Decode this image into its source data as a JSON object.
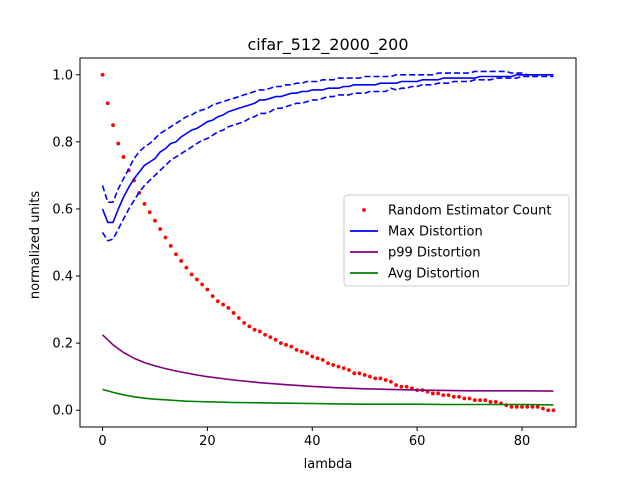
{
  "chart_data": {
    "type": "line",
    "title": "cifar_512_2000_200",
    "xlabel": "lambda",
    "ylabel": "normalized units",
    "xlim": [
      -4.3,
      90.3
    ],
    "ylim": [
      -0.05,
      1.05
    ],
    "xticks": [
      0,
      20,
      40,
      60,
      80
    ],
    "yticks": [
      0.0,
      0.2,
      0.4,
      0.6,
      0.8,
      1.0
    ],
    "xtick_labels": [
      "0",
      "20",
      "40",
      "60",
      "80"
    ],
    "ytick_labels": [
      "0.0",
      "0.2",
      "0.4",
      "0.6",
      "0.8",
      "1.0"
    ],
    "grid": false,
    "legend_position": "center-right",
    "series": [
      {
        "name": "Random Estimator Count",
        "style": "dots",
        "color": "#ff0000",
        "x": [
          0,
          1,
          2,
          3,
          4,
          5,
          6,
          7,
          8,
          9,
          10,
          11,
          12,
          13,
          14,
          15,
          16,
          17,
          18,
          19,
          20,
          21,
          22,
          23,
          24,
          25,
          26,
          27,
          28,
          29,
          30,
          31,
          32,
          33,
          34,
          35,
          36,
          37,
          38,
          39,
          40,
          41,
          42,
          43,
          44,
          45,
          46,
          47,
          48,
          49,
          50,
          51,
          52,
          53,
          54,
          55,
          56,
          57,
          58,
          59,
          60,
          61,
          62,
          63,
          64,
          65,
          66,
          67,
          68,
          69,
          70,
          71,
          72,
          73,
          74,
          75,
          76,
          77,
          78,
          79,
          80,
          81,
          82,
          83,
          84,
          85,
          86
        ],
        "y": [
          1.0,
          0.915,
          0.85,
          0.795,
          0.755,
          0.715,
          0.685,
          0.648,
          0.615,
          0.59,
          0.565,
          0.54,
          0.515,
          0.49,
          0.465,
          0.445,
          0.425,
          0.405,
          0.39,
          0.375,
          0.36,
          0.34,
          0.325,
          0.315,
          0.305,
          0.29,
          0.275,
          0.26,
          0.25,
          0.24,
          0.235,
          0.225,
          0.218,
          0.21,
          0.2,
          0.195,
          0.19,
          0.18,
          0.175,
          0.17,
          0.16,
          0.155,
          0.15,
          0.14,
          0.135,
          0.13,
          0.125,
          0.12,
          0.11,
          0.11,
          0.105,
          0.1,
          0.095,
          0.095,
          0.09,
          0.085,
          0.075,
          0.07,
          0.07,
          0.065,
          0.06,
          0.06,
          0.055,
          0.05,
          0.05,
          0.045,
          0.045,
          0.04,
          0.04,
          0.035,
          0.035,
          0.03,
          0.03,
          0.03,
          0.025,
          0.025,
          0.02,
          0.015,
          0.01,
          0.01,
          0.01,
          0.01,
          0.01,
          0.01,
          0.005,
          0.0,
          0.0
        ]
      },
      {
        "name": "Max Distortion",
        "style": "solid",
        "color": "#0000ff",
        "x": [
          0,
          1,
          2,
          3,
          4,
          5,
          6,
          7,
          8,
          9,
          10,
          11,
          12,
          13,
          14,
          15,
          16,
          17,
          18,
          19,
          20,
          21,
          22,
          23,
          24,
          25,
          26,
          27,
          28,
          29,
          30,
          31,
          32,
          33,
          34,
          35,
          36,
          37,
          38,
          39,
          40,
          41,
          42,
          43,
          44,
          45,
          46,
          47,
          48,
          49,
          50,
          51,
          52,
          53,
          54,
          55,
          56,
          57,
          58,
          59,
          60,
          61,
          62,
          63,
          64,
          65,
          66,
          67,
          68,
          69,
          70,
          71,
          72,
          73,
          74,
          75,
          76,
          77,
          78,
          79,
          80,
          81,
          82,
          83,
          84,
          85,
          86
        ],
        "y": [
          0.6,
          0.56,
          0.56,
          0.6,
          0.635,
          0.665,
          0.69,
          0.71,
          0.73,
          0.74,
          0.75,
          0.77,
          0.78,
          0.795,
          0.8,
          0.815,
          0.825,
          0.835,
          0.84,
          0.85,
          0.86,
          0.865,
          0.875,
          0.88,
          0.89,
          0.895,
          0.9,
          0.905,
          0.91,
          0.915,
          0.925,
          0.925,
          0.93,
          0.935,
          0.935,
          0.94,
          0.945,
          0.945,
          0.95,
          0.95,
          0.955,
          0.955,
          0.955,
          0.96,
          0.96,
          0.96,
          0.965,
          0.965,
          0.97,
          0.97,
          0.97,
          0.97,
          0.97,
          0.975,
          0.975,
          0.975,
          0.975,
          0.98,
          0.98,
          0.98,
          0.98,
          0.985,
          0.985,
          0.985,
          0.985,
          0.99,
          0.99,
          0.99,
          0.99,
          0.99,
          0.99,
          0.99,
          0.995,
          0.995,
          0.995,
          0.995,
          0.995,
          0.995,
          0.995,
          1.0,
          1.0,
          1.0,
          1.0,
          1.0,
          1.0,
          1.0,
          1.0
        ]
      },
      {
        "name": "Max Distortion upper",
        "style": "dashed",
        "color": "#0000ff",
        "x": [
          0,
          1,
          2,
          3,
          4,
          5,
          6,
          7,
          8,
          9,
          10,
          11,
          12,
          13,
          14,
          15,
          16,
          17,
          18,
          19,
          20,
          21,
          22,
          23,
          24,
          25,
          26,
          27,
          28,
          29,
          30,
          31,
          32,
          33,
          34,
          35,
          36,
          37,
          38,
          39,
          40,
          41,
          42,
          43,
          44,
          45,
          46,
          47,
          48,
          49,
          50,
          51,
          52,
          53,
          54,
          55,
          56,
          57,
          58,
          59,
          60,
          61,
          62,
          63,
          64,
          65,
          66,
          67,
          68,
          69,
          70,
          71,
          72,
          73,
          74,
          75,
          76,
          77,
          78,
          79,
          80,
          81,
          82,
          83,
          84,
          85,
          86
        ],
        "y": [
          0.67,
          0.62,
          0.62,
          0.66,
          0.69,
          0.72,
          0.75,
          0.77,
          0.785,
          0.795,
          0.81,
          0.825,
          0.835,
          0.845,
          0.855,
          0.865,
          0.875,
          0.88,
          0.89,
          0.895,
          0.9,
          0.91,
          0.915,
          0.92,
          0.925,
          0.93,
          0.935,
          0.94,
          0.945,
          0.95,
          0.955,
          0.955,
          0.96,
          0.965,
          0.965,
          0.97,
          0.97,
          0.975,
          0.975,
          0.98,
          0.98,
          0.98,
          0.985,
          0.985,
          0.985,
          0.99,
          0.99,
          0.99,
          0.99,
          0.99,
          0.995,
          0.995,
          0.995,
          0.995,
          0.995,
          0.995,
          1.0,
          1.0,
          1.0,
          1.0,
          1.0,
          1.0,
          1.0,
          1.0,
          1.005,
          1.005,
          1.005,
          1.005,
          1.005,
          1.005,
          1.005,
          1.01,
          1.01,
          1.01,
          1.01,
          1.01,
          1.01,
          1.01,
          1.005,
          1.005,
          1.005,
          1.0,
          1.0,
          1.0,
          1.0,
          1.0,
          1.0
        ]
      },
      {
        "name": "Max Distortion lower",
        "style": "dashed",
        "color": "#0000ff",
        "x": [
          0,
          1,
          2,
          3,
          4,
          5,
          6,
          7,
          8,
          9,
          10,
          11,
          12,
          13,
          14,
          15,
          16,
          17,
          18,
          19,
          20,
          21,
          22,
          23,
          24,
          25,
          26,
          27,
          28,
          29,
          30,
          31,
          32,
          33,
          34,
          35,
          36,
          37,
          38,
          39,
          40,
          41,
          42,
          43,
          44,
          45,
          46,
          47,
          48,
          49,
          50,
          51,
          52,
          53,
          54,
          55,
          56,
          57,
          58,
          59,
          60,
          61,
          62,
          63,
          64,
          65,
          66,
          67,
          68,
          69,
          70,
          71,
          72,
          73,
          74,
          75,
          76,
          77,
          78,
          79,
          80,
          81,
          82,
          83,
          84,
          85,
          86
        ],
        "y": [
          0.53,
          0.505,
          0.51,
          0.54,
          0.57,
          0.6,
          0.625,
          0.65,
          0.67,
          0.685,
          0.7,
          0.715,
          0.73,
          0.745,
          0.755,
          0.765,
          0.775,
          0.785,
          0.795,
          0.805,
          0.81,
          0.82,
          0.83,
          0.835,
          0.845,
          0.85,
          0.855,
          0.86,
          0.87,
          0.875,
          0.885,
          0.885,
          0.89,
          0.9,
          0.9,
          0.905,
          0.91,
          0.915,
          0.915,
          0.92,
          0.925,
          0.925,
          0.93,
          0.935,
          0.935,
          0.94,
          0.94,
          0.94,
          0.945,
          0.945,
          0.945,
          0.95,
          0.95,
          0.95,
          0.95,
          0.96,
          0.955,
          0.96,
          0.96,
          0.965,
          0.965,
          0.97,
          0.97,
          0.97,
          0.975,
          0.975,
          0.975,
          0.98,
          0.98,
          0.98,
          0.98,
          0.985,
          0.985,
          0.985,
          0.985,
          0.99,
          0.99,
          0.99,
          0.99,
          0.99,
          0.995,
          0.995,
          0.995,
          0.995,
          0.995,
          0.995,
          0.995
        ]
      },
      {
        "name": "p99 Distortion",
        "style": "solid",
        "color": "#800080",
        "x": [
          0,
          2,
          4,
          6,
          8,
          10,
          12,
          14,
          16,
          18,
          20,
          25,
          30,
          35,
          40,
          45,
          50,
          55,
          60,
          65,
          70,
          75,
          80,
          86
        ],
        "y": [
          0.225,
          0.195,
          0.172,
          0.155,
          0.142,
          0.132,
          0.124,
          0.117,
          0.111,
          0.105,
          0.1,
          0.09,
          0.082,
          0.076,
          0.071,
          0.067,
          0.064,
          0.062,
          0.06,
          0.059,
          0.058,
          0.058,
          0.058,
          0.057
        ]
      },
      {
        "name": "Avg Distortion",
        "style": "solid",
        "color": "#008000",
        "x": [
          0,
          2,
          4,
          6,
          8,
          10,
          12,
          14,
          16,
          18,
          20,
          25,
          30,
          35,
          40,
          45,
          50,
          55,
          60,
          65,
          70,
          75,
          80,
          86
        ],
        "y": [
          0.062,
          0.053,
          0.046,
          0.04,
          0.036,
          0.033,
          0.031,
          0.029,
          0.027,
          0.026,
          0.025,
          0.023,
          0.022,
          0.021,
          0.02,
          0.019,
          0.018,
          0.018,
          0.018,
          0.017,
          0.017,
          0.017,
          0.017,
          0.016
        ]
      }
    ],
    "legend": [
      {
        "label": "Random Estimator Count",
        "color": "#ff0000",
        "style": "dot"
      },
      {
        "label": "Max Distortion",
        "color": "#0000ff",
        "style": "line"
      },
      {
        "label": "p99 Distortion",
        "color": "#800080",
        "style": "line"
      },
      {
        "label": "Avg Distortion",
        "color": "#008000",
        "style": "line"
      }
    ]
  }
}
